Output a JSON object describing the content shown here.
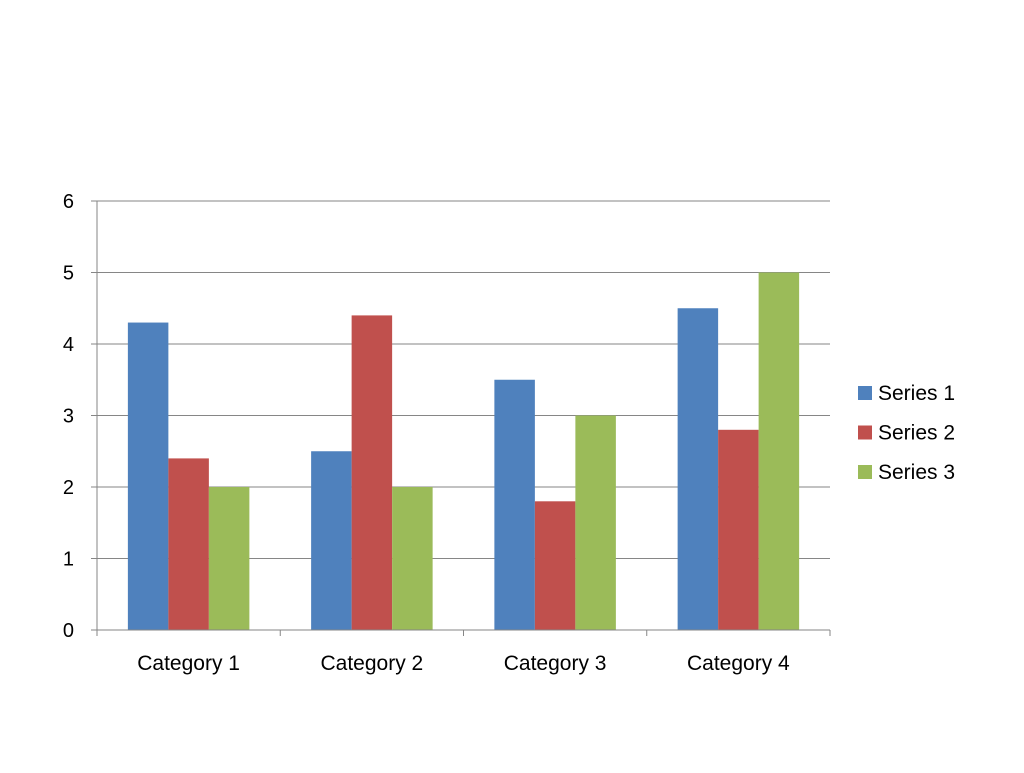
{
  "chart_data": {
    "type": "bar",
    "categories": [
      "Category 1",
      "Category 2",
      "Category 3",
      "Category 4"
    ],
    "series": [
      {
        "name": "Series 1",
        "values": [
          4.3,
          2.5,
          3.5,
          4.5
        ],
        "color": "#4F81BD"
      },
      {
        "name": "Series 2",
        "values": [
          2.4,
          4.4,
          1.8,
          2.8
        ],
        "color": "#C0504D"
      },
      {
        "name": "Series 3",
        "values": [
          2,
          2,
          3,
          5
        ],
        "color": "#9BBB59"
      }
    ],
    "title": "",
    "xlabel": "",
    "ylabel": "",
    "ylim": [
      0,
      6
    ],
    "yticks": [
      "0",
      "1",
      "2",
      "3",
      "4",
      "5",
      "6"
    ],
    "grid": true,
    "legend_position": "right"
  },
  "colors": {
    "gridline": "#868686",
    "axis": "#868686"
  }
}
